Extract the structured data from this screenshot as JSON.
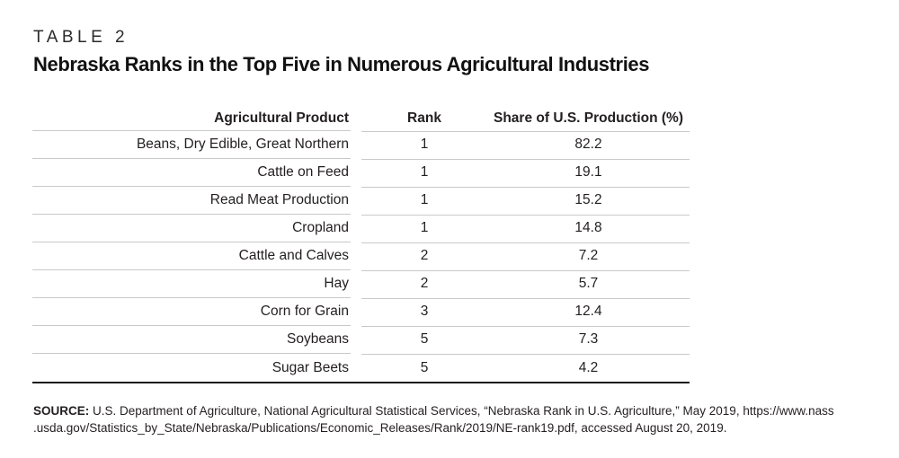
{
  "table_label": "TABLE 2",
  "title": "Nebraska Ranks in the Top Five in Numerous Agricultural Industries",
  "table": {
    "columns": [
      "Agricultural Product",
      "Rank",
      "Share of U.S. Production (%)"
    ],
    "rows": [
      [
        "Beans, Dry Edible, Great Northern",
        "1",
        "82.2"
      ],
      [
        "Cattle on Feed",
        "1",
        "19.1"
      ],
      [
        "Read Meat Production",
        "1",
        "15.2"
      ],
      [
        "Cropland",
        "1",
        "14.8"
      ],
      [
        "Cattle and Calves",
        "2",
        "7.2"
      ],
      [
        "Hay",
        "2",
        "5.7"
      ],
      [
        "Corn for Grain",
        "3",
        "12.4"
      ],
      [
        "Soybeans",
        "5",
        "7.3"
      ],
      [
        "Sugar Beets",
        "5",
        "4.2"
      ]
    ]
  },
  "source": {
    "label": "SOURCE:",
    "line1": " U.S. Department of Agriculture, National Agricultural Statistical Services, “Nebraska Rank in U.S. Agriculture,” May 2019, https://www.nass",
    "line2": ".usda.gov/Statistics_by_State/Nebraska/Publications/Economic_Releases/Rank/2019/NE-rank19.pdf, accessed August 20, 2019."
  },
  "colors": {
    "text": "#231f20",
    "rule_gray": "#c9c9c9",
    "rule_black": "#1a1a1a",
    "background": "#ffffff"
  }
}
